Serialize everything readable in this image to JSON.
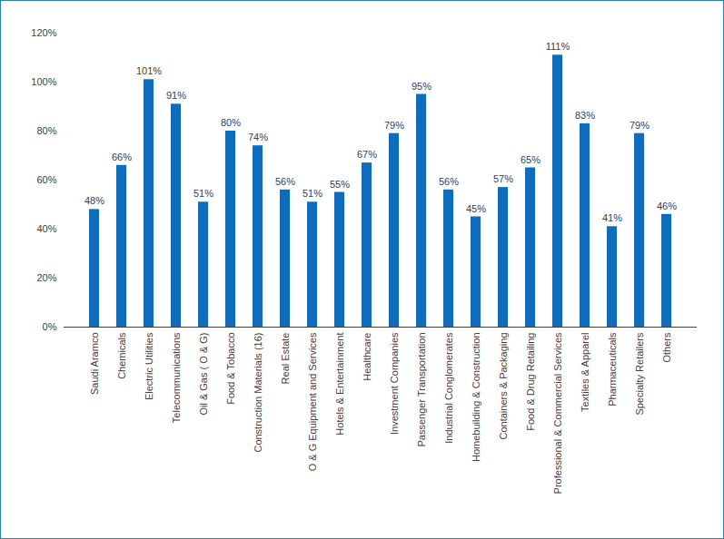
{
  "chart_data": {
    "type": "bar",
    "categories": [
      "Saudi Aramco",
      "Chemicals",
      "Electric Utilities",
      "Telecommunications",
      "Oil & Gas ( O & G)",
      "Food & Tobacco",
      "Construction Materials (16)",
      "Real Estate",
      "O & G Equipment and Services",
      "Hotels & Entertainment",
      "Healthcare",
      "Investment Companies",
      "Passenger Transportation",
      "Industrial Conglomerates",
      "Homebuilding & Construction",
      "Containers & Packaging",
      "Food & Drug Retailing",
      "Professional & Commercial Services",
      "Textiles & Apparel",
      "Pharmaceuticals",
      "Specialty Retailers",
      "Others"
    ],
    "values": [
      48,
      66,
      101,
      91,
      51,
      80,
      74,
      56,
      51,
      55,
      67,
      79,
      95,
      56,
      45,
      57,
      65,
      111,
      83,
      41,
      79,
      46
    ],
    "value_labels": [
      "48%",
      "66%",
      "101%",
      "91%",
      "51%",
      "80%",
      "74%",
      "56%",
      "51%",
      "55%",
      "67%",
      "79%",
      "95%",
      "56%",
      "45%",
      "57%",
      "65%",
      "111%",
      "83%",
      "41%",
      "79%",
      "46%"
    ],
    "data_labels": true,
    "color": "#0f6cbd",
    "ylim": [
      0,
      120
    ],
    "yticks": [
      {
        "value": 0,
        "label": "0%"
      },
      {
        "value": 20,
        "label": "20%"
      },
      {
        "value": 40,
        "label": "40%"
      },
      {
        "value": 60,
        "label": "60%"
      },
      {
        "value": 80,
        "label": "80%"
      },
      {
        "value": 100,
        "label": "100%"
      },
      {
        "value": 120,
        "label": "120%"
      }
    ],
    "grid": false
  }
}
